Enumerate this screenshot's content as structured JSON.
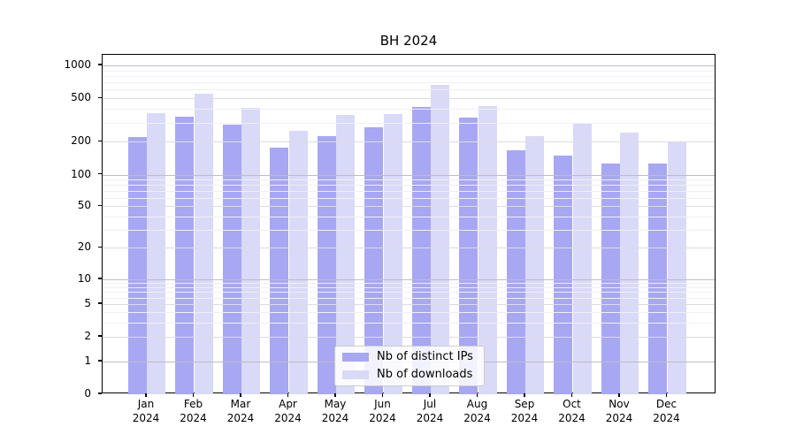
{
  "title": "BH 2024",
  "chart_data": {
    "type": "bar",
    "title": "BH 2024",
    "categories": [
      "Jan 2024",
      "Feb 2024",
      "Mar 2024",
      "Apr 2024",
      "May 2024",
      "Jun 2024",
      "Jul 2024",
      "Aug 2024",
      "Sep 2024",
      "Oct 2024",
      "Nov 2024",
      "Dec 2024"
    ],
    "series": [
      {
        "name": "Nb of distinct IPs",
        "color": "#a7a7f3",
        "values": [
          220,
          340,
          285,
          178,
          227,
          272,
          418,
          333,
          166,
          149,
          127,
          127
        ]
      },
      {
        "name": "Nb of downloads",
        "color": "#d9d9f8",
        "values": [
          364,
          550,
          410,
          251,
          352,
          358,
          660,
          427,
          224,
          291,
          244,
          198
        ]
      }
    ],
    "xlabel": "",
    "ylabel": "",
    "yscale": "symlog",
    "ylim": [
      0,
      1250
    ],
    "y_ticks": [
      0,
      1,
      2,
      5,
      10,
      20,
      50,
      100,
      200,
      500,
      1000
    ],
    "grid": true,
    "legend_position": "lower center"
  },
  "colors": {
    "background": "#ffffff",
    "spine": "#000000",
    "grid_major": "#bdbdc6",
    "grid_sub": "#dcdce3",
    "grid_minor": "#f0f0f3",
    "bar_ips": "#a7a7f3",
    "bar_downloads": "#d9d9f8"
  }
}
